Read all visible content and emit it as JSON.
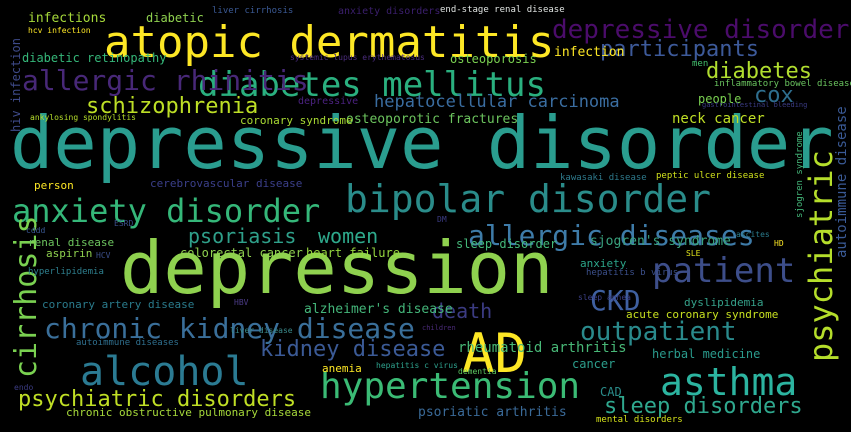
{
  "word_cloud": {
    "background_color": "#000000",
    "words": [
      {
        "text": "depressive disorder",
        "color": "#2a9d8f"
      },
      {
        "text": "depression",
        "color": "#8fd14f"
      },
      {
        "text": "atopic dermatitis",
        "color": "#fde725"
      },
      {
        "text": "diabetes mellitus",
        "color": "#2ab07f"
      },
      {
        "text": "bipolar disorder",
        "color": "#2a8c8a"
      },
      {
        "text": "anxiety disorder",
        "color": "#35b779"
      },
      {
        "text": "allergic diseases",
        "color": "#3e7ba8"
      },
      {
        "text": "asthma",
        "color": "#2cb4a0"
      },
      {
        "text": "alcohol",
        "color": "#2b7b93"
      },
      {
        "text": "hypertension",
        "color": "#3bbb75"
      },
      {
        "text": "AD",
        "color": "#fde725"
      },
      {
        "text": "patient",
        "color": "#3d4e8a"
      },
      {
        "text": "chronic kidney disease",
        "color": "#3a6f9a"
      },
      {
        "text": "allergic rhinitis",
        "color": "#482878"
      },
      {
        "text": "depressive disorders",
        "color": "#4b0c6b"
      },
      {
        "text": "psychiatric",
        "color": "#b5de2b"
      },
      {
        "text": "cirrhosis",
        "color": "#7ad151"
      },
      {
        "text": "CKD",
        "color": "#3f60a0"
      },
      {
        "text": "outpatient",
        "color": "#2a8a8c"
      },
      {
        "text": "kidney disease",
        "color": "#3b5a96"
      },
      {
        "text": "sleep disorders",
        "color": "#2fa88e"
      },
      {
        "text": "psychiatric disorders",
        "color": "#c0df25"
      },
      {
        "text": "participants",
        "color": "#3d5a9a"
      },
      {
        "text": "diabetes",
        "color": "#b0dd2f"
      },
      {
        "text": "schizophrenia",
        "color": "#bddf26"
      },
      {
        "text": "hepatocellular carcinoma",
        "color": "#3a6da0"
      },
      {
        "text": "cox",
        "color": "#2e6e8e"
      },
      {
        "text": "psoriasis",
        "color": "#2fa08a"
      },
      {
        "text": "women",
        "color": "#2ea98c"
      },
      {
        "text": "death",
        "color": "#3b3b82"
      },
      {
        "text": "autoimmune disease",
        "color": "#3a5a96"
      },
      {
        "text": "sjogren's syndrome",
        "color": "#3aa37f"
      },
      {
        "text": "rheumatoid arthritis",
        "color": "#48b877"
      },
      {
        "text": "alzheimer's disease",
        "color": "#44b67a"
      },
      {
        "text": "neck cancer",
        "color": "#c0df25"
      },
      {
        "text": "osteoporotic fractures",
        "color": "#6cc45e"
      },
      {
        "text": "infections",
        "color": "#a6d93a"
      },
      {
        "text": "diabetic",
        "color": "#8fd14f"
      },
      {
        "text": "infection",
        "color": "#fde725"
      },
      {
        "text": "osteoporosis",
        "color": "#7ad151"
      },
      {
        "text": "diabetic retinopathy",
        "color": "#35b779"
      },
      {
        "text": "people",
        "color": "#7ad151"
      },
      {
        "text": "men",
        "color": "#44c16d"
      },
      {
        "text": "inflammatory bowel disease",
        "color": "#6ac45f"
      },
      {
        "text": "gastrointestinal bleeding",
        "color": "#3a3b84"
      },
      {
        "text": "liver cirrhosis",
        "color": "#3b5a96"
      },
      {
        "text": "anxiety disorders",
        "color": "#3b1f6d"
      },
      {
        "text": "end-stage renal disease",
        "color": "#e0e4e2"
      },
      {
        "text": "systemic lupus erythematosus",
        "color": "#4b2c7e"
      },
      {
        "text": "hcv infection",
        "color": "#fde725"
      },
      {
        "text": "hiv infection",
        "color": "#3e4a89"
      },
      {
        "text": "ankylosing spondylitis",
        "color": "#b5de2b"
      },
      {
        "text": "coronary syndrome",
        "color": "#a9db33"
      },
      {
        "text": "depressive",
        "color": "#4b2280"
      },
      {
        "text": "sjogren syndrome",
        "color": "#44b87a"
      },
      {
        "text": "person",
        "color": "#fde725"
      },
      {
        "text": "cerebrovascular disease",
        "color": "#3b3f8a"
      },
      {
        "text": "kawasaki disease",
        "color": "#2e7a8c"
      },
      {
        "text": "peptic ulcer disease",
        "color": "#d0e11c"
      },
      {
        "text": "sleep disorder",
        "color": "#44b87a"
      },
      {
        "text": "heart failure",
        "color": "#97d83f"
      },
      {
        "text": "colorectal cancer",
        "color": "#8fd14f"
      },
      {
        "text": "renal disease",
        "color": "#6cc45e"
      },
      {
        "text": "aspirin",
        "color": "#8fd14f"
      },
      {
        "text": "hyperlipidemia",
        "color": "#2e7f8e"
      },
      {
        "text": "coronary artery disease",
        "color": "#2a7b8c"
      },
      {
        "text": "anxiety",
        "color": "#2ca58a"
      },
      {
        "text": "dyslipidemia",
        "color": "#35a18a"
      },
      {
        "text": "hepatitis b virus",
        "color": "#3b4f8a"
      },
      {
        "text": "sleep apnea",
        "color": "#3b3f86"
      },
      {
        "text": "acute coronary syndrome",
        "color": "#c7e020"
      },
      {
        "text": "autoimmune diseases",
        "color": "#2f6f8e"
      },
      {
        "text": "herbal medicine",
        "color": "#2a9a8c"
      },
      {
        "text": "anemia",
        "color": "#fde725"
      },
      {
        "text": "hepatitis c virus",
        "color": "#2ea28e"
      },
      {
        "text": "dementia",
        "color": "#5ec962"
      },
      {
        "text": "cancer",
        "color": "#2c9e8c"
      },
      {
        "text": "CAD",
        "color": "#2a8c8a"
      },
      {
        "text": "chronic obstructive pulmonary disease",
        "color": "#a6d93a"
      },
      {
        "text": "psoriatic arthritis",
        "color": "#3a6a98"
      },
      {
        "text": "mental disorders",
        "color": "#d5e21a"
      },
      {
        "text": "liver disease",
        "color": "#3b8a8c"
      },
      {
        "text": "children",
        "color": "#4a2a78"
      },
      {
        "text": "HBV",
        "color": "#4b3b86"
      },
      {
        "text": "HCV",
        "color": "#3b4f8a"
      },
      {
        "text": "cddd",
        "color": "#3b5a96"
      },
      {
        "text": "ESRD",
        "color": "#3b4f8a"
      },
      {
        "text": "DM",
        "color": "#3b3b82"
      },
      {
        "text": "ascites",
        "color": "#2a7b8c"
      },
      {
        "text": "SLE",
        "color": "#dfe31a"
      },
      {
        "text": "HD",
        "color": "#fde725"
      },
      {
        "text": "endo",
        "color": "#3b3b82"
      }
    ]
  }
}
